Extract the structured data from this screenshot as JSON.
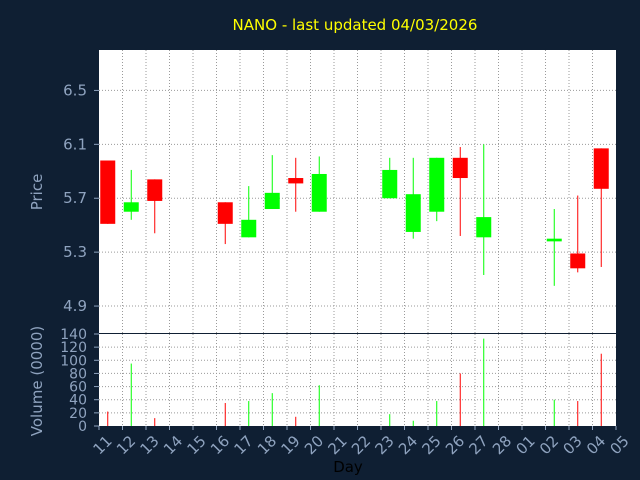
{
  "title": "NANO - last updated 04/03/2026",
  "colors": {
    "background": "#0f1f33",
    "panel": "#ffffff",
    "grid": "#9a9a9a",
    "up": "#00ff00",
    "down": "#ff0000",
    "title": "#ffff00",
    "axis_text": "#8fa3bf"
  },
  "chart_data": [
    {
      "type": "candlestick",
      "ylabel": "Price",
      "ylim": [
        4.7,
        6.8
      ],
      "yticks": [
        4.9,
        5.3,
        5.7,
        6.1,
        6.5
      ],
      "ytick_labels": [
        "4.9",
        "5.3",
        "5.7",
        "6.1",
        "6.5"
      ],
      "grid": true,
      "x_labels": [
        "11",
        "12",
        "13",
        "14",
        "15",
        "16",
        "17",
        "18",
        "19",
        "20",
        "21",
        "22",
        "23",
        "24",
        "25",
        "26",
        "27",
        "28",
        "01",
        "02",
        "03",
        "04",
        "05"
      ],
      "candles": [
        {
          "day": "11",
          "open": 5.98,
          "high": 5.98,
          "low": 5.51,
          "close": 5.51
        },
        {
          "day": "12",
          "open": 5.6,
          "high": 5.91,
          "low": 5.54,
          "close": 5.67
        },
        {
          "day": "13",
          "open": 5.84,
          "high": 5.84,
          "low": 5.44,
          "close": 5.68
        },
        {
          "day": "16",
          "open": 5.67,
          "high": 5.67,
          "low": 5.36,
          "close": 5.51
        },
        {
          "day": "17",
          "open": 5.41,
          "high": 5.79,
          "low": 5.41,
          "close": 5.54
        },
        {
          "day": "18",
          "open": 5.62,
          "high": 6.02,
          "low": 5.62,
          "close": 5.74
        },
        {
          "day": "19",
          "open": 5.85,
          "high": 6.0,
          "low": 5.6,
          "close": 5.81
        },
        {
          "day": "20",
          "open": 5.6,
          "high": 6.01,
          "low": 5.6,
          "close": 5.88
        },
        {
          "day": "23",
          "open": 5.7,
          "high": 6.0,
          "low": 5.7,
          "close": 5.91
        },
        {
          "day": "24",
          "open": 5.45,
          "high": 6.0,
          "low": 5.4,
          "close": 5.73
        },
        {
          "day": "25",
          "open": 5.6,
          "high": 6.0,
          "low": 5.53,
          "close": 6.0
        },
        {
          "day": "26",
          "open": 6.0,
          "high": 6.08,
          "low": 5.42,
          "close": 5.85
        },
        {
          "day": "27",
          "open": 5.41,
          "high": 6.1,
          "low": 5.13,
          "close": 5.56
        },
        {
          "day": "02",
          "open": 5.38,
          "high": 5.62,
          "low": 5.05,
          "close": 5.4
        },
        {
          "day": "03",
          "open": 5.29,
          "high": 5.72,
          "low": 5.15,
          "close": 5.18
        },
        {
          "day": "04",
          "open": 6.07,
          "high": 6.07,
          "low": 5.19,
          "close": 5.77
        }
      ]
    },
    {
      "type": "bar",
      "ylabel": "Volume (0000)",
      "xlabel": "Day",
      "ylim": [
        0,
        140
      ],
      "yticks": [
        0,
        20,
        40,
        60,
        80,
        100,
        120,
        140
      ],
      "ytick_labels": [
        "0",
        "20",
        "40",
        "60",
        "80",
        "100",
        "120",
        "140"
      ],
      "categories": [
        "11",
        "12",
        "13",
        "16",
        "17",
        "18",
        "19",
        "20",
        "23",
        "24",
        "25",
        "26",
        "27",
        "02",
        "03",
        "04"
      ],
      "values": [
        22,
        95,
        12,
        35,
        38,
        50,
        14,
        62,
        18,
        8,
        38,
        80,
        133,
        40,
        38,
        110
      ],
      "direction": [
        "down",
        "up",
        "down",
        "down",
        "up",
        "up",
        "down",
        "up",
        "up",
        "up",
        "up",
        "down",
        "up",
        "up",
        "down",
        "down"
      ]
    }
  ]
}
